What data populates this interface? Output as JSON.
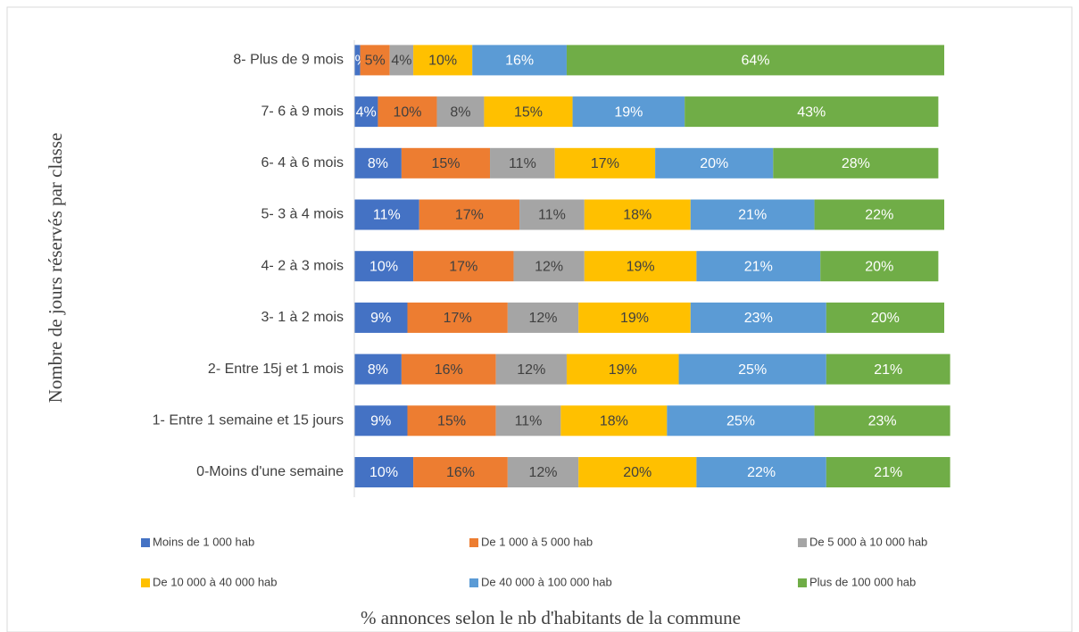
{
  "chart_data": {
    "type": "stacked_barh",
    "xlabel": "% annonces selon le nb d'habitants de la commune",
    "ylabel": "Nombre de jours réservés par classe",
    "categories": [
      "0-Moins d'une semaine",
      "1- Entre 1 semaine et 15 jours",
      "2- Entre 15j et 1 mois",
      "3- 1 à 2 mois",
      "4- 2 à 3 mois",
      "5- 3 à 4 mois",
      "6- 4 à 6 mois",
      "7- 6 à 9 mois",
      "8- Plus de 9 mois"
    ],
    "xlim": [
      0,
      100
    ],
    "legend": "bottom",
    "series": [
      {
        "name": "Moins de 1 000 hab",
        "color": "#4472c4",
        "values": [
          10,
          9,
          8,
          9,
          10,
          11,
          8,
          4,
          1
        ],
        "value_labels": [
          "10%",
          "9%",
          "8%",
          "9%",
          "10%",
          "11%",
          "8%",
          "4%",
          "1%"
        ]
      },
      {
        "name": "De 1 000 à 5 000 hab",
        "color": "#ed7d31",
        "values": [
          16,
          15,
          16,
          17,
          17,
          17,
          15,
          10,
          5
        ],
        "value_labels": [
          "16%",
          "15%",
          "16%",
          "17%",
          "17%",
          "17%",
          "15%",
          "10%",
          "5%"
        ]
      },
      {
        "name": "De 5 000 à 10 000 hab",
        "color": "#a5a5a5",
        "values": [
          12,
          11,
          12,
          12,
          12,
          11,
          11,
          8,
          4
        ],
        "value_labels": [
          "12%",
          "11%",
          "12%",
          "12%",
          "12%",
          "11%",
          "11%",
          "8%",
          "4%"
        ]
      },
      {
        "name": "De 10 000 à 40 000 hab",
        "color": "#ffc000",
        "values": [
          20,
          18,
          19,
          19,
          19,
          18,
          17,
          15,
          10
        ],
        "value_labels": [
          "20%",
          "18%",
          "19%",
          "19%",
          "19%",
          "18%",
          "17%",
          "15%",
          "10%"
        ]
      },
      {
        "name": "De 40 000 à 100 000 hab",
        "color": "#5b9bd5",
        "values": [
          22,
          25,
          25,
          23,
          21,
          21,
          20,
          19,
          16
        ],
        "value_labels": [
          "22%",
          "25%",
          "25%",
          "23%",
          "21%",
          "21%",
          "20%",
          "19%",
          "16%"
        ]
      },
      {
        "name": "Plus de 100 000 hab",
        "color": "#70ad47",
        "values": [
          21,
          23,
          21,
          20,
          20,
          22,
          28,
          43,
          64
        ],
        "value_labels": [
          "21%",
          "23%",
          "21%",
          "20%",
          "20%",
          "22%",
          "28%",
          "43%",
          "64%"
        ]
      }
    ]
  }
}
